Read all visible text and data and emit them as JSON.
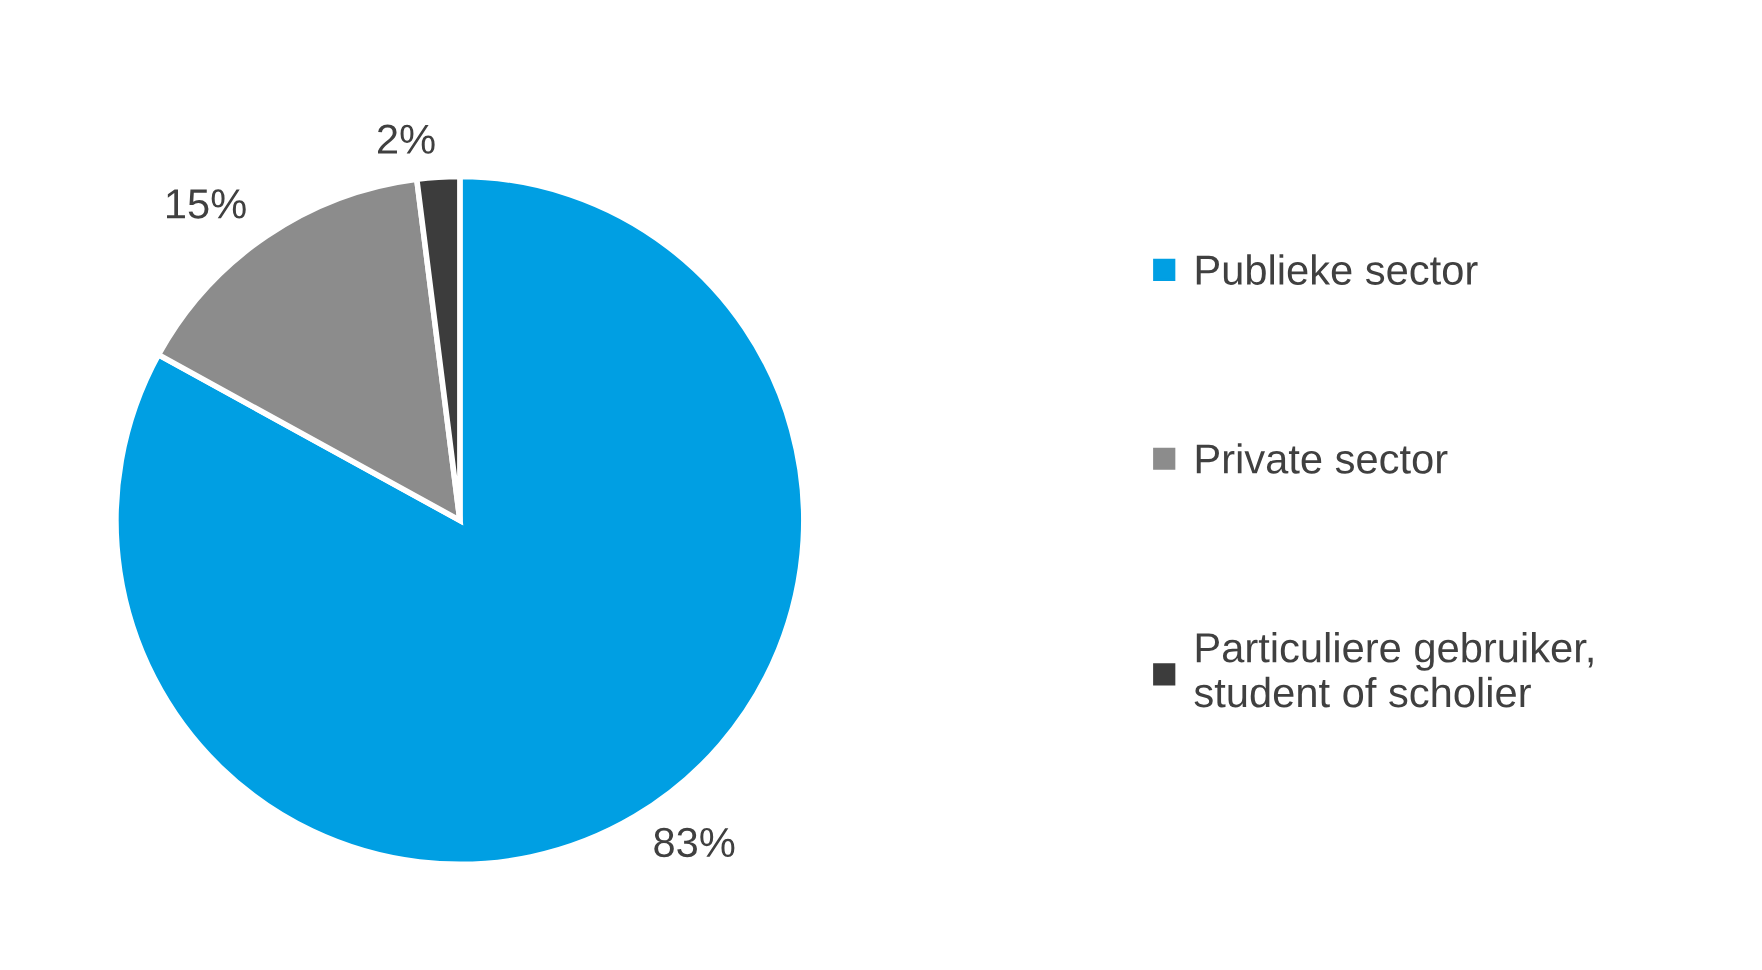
{
  "chart_data": {
    "type": "pie",
    "categories": [
      "Publieke sector",
      "Private sector",
      "Particuliere gebruiker,\nstudent of scholier"
    ],
    "values": [
      83,
      15,
      2
    ],
    "colors": [
      "#009fe3",
      "#8c8c8c",
      "#3c3c3c"
    ],
    "value_labels": [
      "83%",
      "15%",
      "2%"
    ],
    "legend": "right"
  }
}
